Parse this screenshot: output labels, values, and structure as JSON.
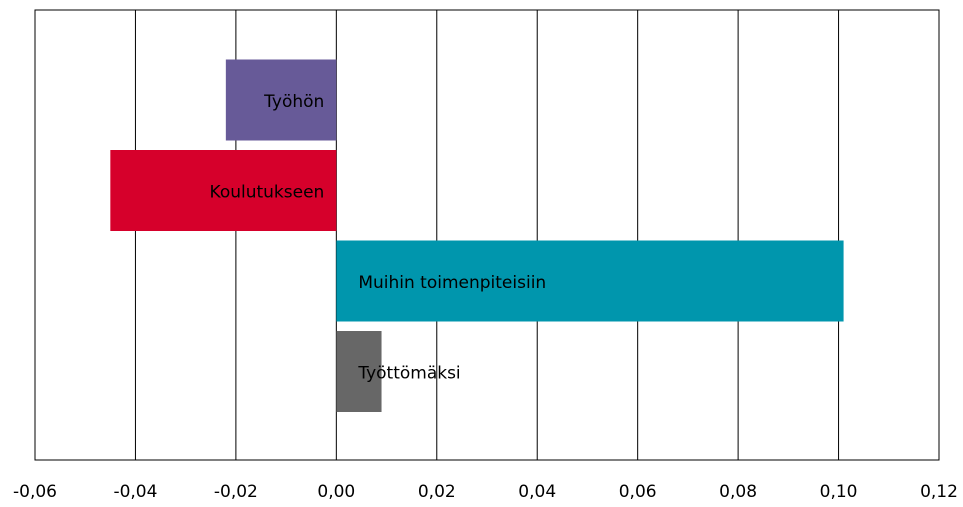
{
  "chart_data": {
    "type": "bar",
    "orientation": "horizontal",
    "categories": [
      "Työhön",
      "Koulutukseen",
      "Muihin toimenpiteisiin",
      "Työttömäksi"
    ],
    "values": [
      -0.022,
      -0.045,
      0.101,
      0.009
    ],
    "colors": [
      "#675a98",
      "#d6002b",
      "#0096ad",
      "#676767"
    ],
    "xlim": [
      -0.06,
      0.12
    ],
    "xticks": [
      {
        "value": -0.06,
        "label": "-0,06"
      },
      {
        "value": -0.04,
        "label": "-0,04"
      },
      {
        "value": -0.02,
        "label": "-0,02"
      },
      {
        "value": 0,
        "label": "0,00"
      },
      {
        "value": 0.02,
        "label": "0,02"
      },
      {
        "value": 0.04,
        "label": "0,04"
      },
      {
        "value": 0.06,
        "label": "0,06"
      },
      {
        "value": 0.08,
        "label": "0,08"
      },
      {
        "value": 0.1,
        "label": "0,10"
      },
      {
        "value": 0.12,
        "label": "0,12"
      }
    ],
    "grid": true
  }
}
